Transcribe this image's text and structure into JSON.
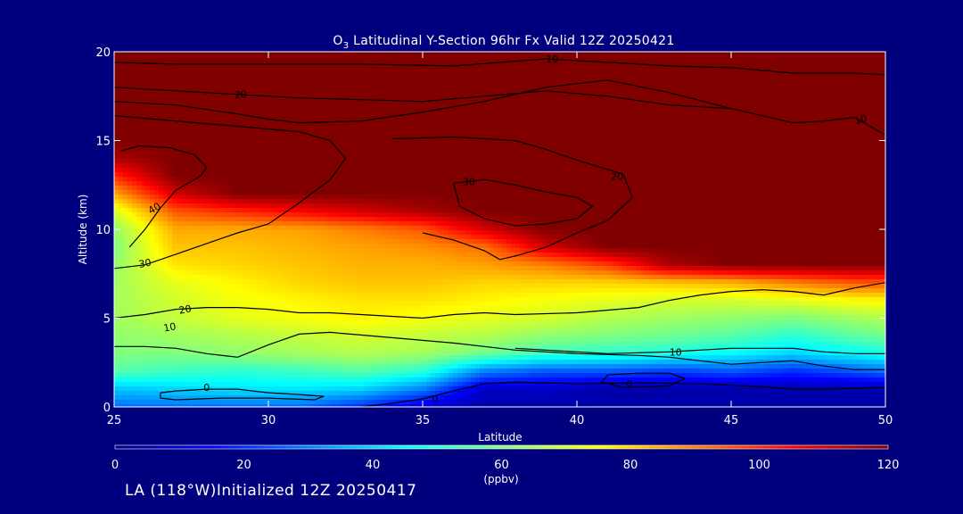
{
  "chart_data": {
    "type": "heatmap",
    "title": "O3 Latitudinal Y-Section 96hr  Fx Valid 12Z 20250421",
    "title_parts": {
      "pre": "O",
      "sub": "3",
      "post": " Latitudinal Y-Section 96hr  Fx Valid 12Z 20250421"
    },
    "xlabel": "Latitude",
    "ylabel": "Altitude (km)",
    "xlim": [
      25,
      50
    ],
    "ylim": [
      0,
      20
    ],
    "x_ticks": [
      25,
      30,
      35,
      40,
      45,
      50
    ],
    "y_ticks": [
      0,
      5,
      10,
      15,
      20
    ],
    "colorbar": {
      "label": "(ppbv)",
      "min": 0,
      "max": 120,
      "ticks": [
        0,
        20,
        40,
        60,
        80,
        100,
        120
      ]
    },
    "field": {
      "x": [
        25,
        27,
        29,
        31,
        33,
        35,
        37,
        39,
        41,
        43,
        45,
        47,
        49,
        50
      ],
      "y": [
        0,
        1,
        2,
        3,
        4,
        5,
        6,
        7,
        8,
        9,
        10,
        11,
        12,
        13,
        14,
        15,
        16,
        18,
        20
      ],
      "z": [
        [
          28,
          28,
          28,
          28,
          20,
          10,
          5,
          5,
          5,
          5,
          5,
          5,
          5,
          5
        ],
        [
          38,
          40,
          42,
          42,
          40,
          30,
          8,
          8,
          5,
          5,
          5,
          5,
          5,
          5
        ],
        [
          55,
          52,
          50,
          52,
          55,
          50,
          30,
          25,
          25,
          22,
          25,
          20,
          25,
          28
        ],
        [
          60,
          60,
          62,
          64,
          66,
          64,
          58,
          52,
          50,
          48,
          45,
          40,
          45,
          48
        ],
        [
          62,
          64,
          66,
          68,
          70,
          68,
          66,
          62,
          60,
          58,
          55,
          50,
          56,
          58
        ],
        [
          64,
          68,
          72,
          74,
          76,
          74,
          72,
          70,
          66,
          64,
          62,
          60,
          64,
          66
        ],
        [
          64,
          70,
          74,
          76,
          78,
          78,
          76,
          74,
          72,
          70,
          70,
          72,
          75,
          76
        ],
        [
          64,
          72,
          76,
          80,
          82,
          82,
          80,
          80,
          80,
          82,
          84,
          90,
          95,
          95
        ],
        [
          62,
          78,
          80,
          82,
          84,
          84,
          86,
          90,
          98,
          115,
          120,
          120,
          120,
          120
        ],
        [
          60,
          82,
          82,
          84,
          86,
          88,
          92,
          110,
          120,
          120,
          120,
          120,
          120,
          120
        ],
        [
          62,
          85,
          85,
          86,
          90,
          95,
          110,
          120,
          120,
          120,
          120,
          120,
          120,
          120
        ],
        [
          70,
          95,
          100,
          105,
          110,
          115,
          120,
          120,
          120,
          120,
          120,
          120,
          120,
          120
        ],
        [
          85,
          110,
          120,
          120,
          120,
          120,
          120,
          120,
          120,
          120,
          120,
          120,
          120,
          120
        ],
        [
          100,
          120,
          120,
          120,
          120,
          120,
          120,
          120,
          120,
          120,
          120,
          120,
          120,
          120
        ],
        [
          115,
          120,
          120,
          120,
          120,
          120,
          120,
          120,
          120,
          120,
          120,
          120,
          120,
          120
        ],
        [
          120,
          120,
          120,
          120,
          120,
          120,
          120,
          120,
          120,
          120,
          120,
          120,
          120,
          120
        ],
        [
          120,
          120,
          120,
          120,
          120,
          120,
          120,
          120,
          120,
          120,
          120,
          120,
          120,
          120
        ],
        [
          120,
          120,
          120,
          120,
          120,
          120,
          120,
          120,
          120,
          120,
          120,
          120,
          120,
          120
        ],
        [
          120,
          120,
          120,
          120,
          120,
          120,
          120,
          120,
          120,
          120,
          120,
          120,
          120,
          120
        ]
      ]
    },
    "contours": [
      {
        "label": "0",
        "label_at": [
          28,
          1.1
        ],
        "label_rotation": 0,
        "points": [
          [
            26.5,
            0.8
          ],
          [
            27,
            0.9
          ],
          [
            28,
            1.0
          ],
          [
            29,
            1.0
          ],
          [
            30,
            0.8
          ],
          [
            31,
            0.7
          ],
          [
            31.8,
            0.6
          ],
          [
            31.5,
            0.4
          ],
          [
            30,
            0.5
          ],
          [
            28.5,
            0.5
          ],
          [
            27,
            0.4
          ],
          [
            26.5,
            0.5
          ],
          [
            26.5,
            0.8
          ]
        ]
      },
      {
        "label": "0",
        "label_at": [
          35.4,
          0.45
        ],
        "label_rotation": -10,
        "points": [
          [
            33,
            0.0
          ],
          [
            34,
            0.2
          ],
          [
            35,
            0.45
          ],
          [
            36,
            0.9
          ],
          [
            37,
            1.3
          ],
          [
            38,
            1.4
          ],
          [
            40,
            1.3
          ],
          [
            42,
            1.35
          ],
          [
            44,
            1.3
          ],
          [
            46,
            1.15
          ],
          [
            47,
            1.0
          ],
          [
            48,
            1.0
          ],
          [
            49,
            1.05
          ],
          [
            50,
            1.1
          ]
        ]
      },
      {
        "label": "0",
        "label_at": [
          41.7,
          1.3
        ],
        "label_rotation": 0,
        "points": [
          [
            41,
            1.8
          ],
          [
            42,
            1.9
          ],
          [
            43,
            1.9
          ],
          [
            43.5,
            1.6
          ],
          [
            43,
            1.2
          ],
          [
            41.5,
            1.1
          ],
          [
            40.8,
            1.4
          ],
          [
            41,
            1.8
          ]
        ]
      },
      {
        "label": "10",
        "label_at": [
          26.8,
          4.5
        ],
        "label_rotation": -10,
        "points": [
          [
            25,
            3.4
          ],
          [
            26,
            3.4
          ],
          [
            27,
            3.3
          ],
          [
            28,
            3.0
          ],
          [
            29,
            2.8
          ],
          [
            30,
            3.5
          ],
          [
            31,
            4.1
          ],
          [
            32,
            4.2
          ],
          [
            34,
            3.9
          ],
          [
            36,
            3.6
          ],
          [
            37,
            3.4
          ],
          [
            38,
            3.2
          ],
          [
            40,
            3.0
          ],
          [
            42,
            2.9
          ],
          [
            43,
            2.8
          ],
          [
            44,
            2.6
          ],
          [
            45,
            2.4
          ],
          [
            47,
            2.6
          ],
          [
            48,
            2.3
          ],
          [
            49,
            2.1
          ],
          [
            50,
            2.1
          ]
        ]
      },
      {
        "label": "10",
        "label_at": [
          43.2,
          3.1
        ],
        "label_rotation": 0,
        "points": [
          [
            38,
            3.3
          ],
          [
            40,
            3.1
          ],
          [
            41,
            3.0
          ],
          [
            43,
            3.1
          ],
          [
            44,
            3.2
          ],
          [
            45,
            3.3
          ],
          [
            46,
            3.3
          ],
          [
            47,
            3.3
          ],
          [
            48,
            3.1
          ],
          [
            49,
            3.0
          ],
          [
            50,
            3.0
          ]
        ]
      },
      {
        "label": "10",
        "label_at": [
          39.2,
          19.6
        ],
        "label_rotation": 0,
        "points": [
          [
            25,
            19.4
          ],
          [
            27,
            19.3
          ],
          [
            30,
            19.3
          ],
          [
            33,
            19.3
          ],
          [
            36,
            19.2
          ],
          [
            39,
            19.6
          ],
          [
            41,
            19.4
          ],
          [
            43,
            19.2
          ],
          [
            45,
            19.1
          ],
          [
            47,
            18.8
          ],
          [
            49,
            18.8
          ],
          [
            50,
            18.7
          ]
        ]
      },
      {
        "label": "10",
        "label_at": [
          49.2,
          16.2
        ],
        "label_rotation": -15,
        "points": [
          [
            25,
            17.2
          ],
          [
            27,
            17.0
          ],
          [
            29,
            16.5
          ],
          [
            30,
            16.2
          ],
          [
            31,
            16.0
          ],
          [
            33,
            16.1
          ],
          [
            35,
            16.6
          ],
          [
            37,
            17.2
          ],
          [
            39,
            18.0
          ],
          [
            41,
            18.4
          ],
          [
            43,
            17.7
          ],
          [
            45,
            16.8
          ],
          [
            47,
            16.0
          ],
          [
            48,
            16.1
          ],
          [
            49,
            16.3
          ],
          [
            50,
            15.3
          ]
        ]
      },
      {
        "label": "20",
        "label_at": [
          27.3,
          5.5
        ],
        "label_rotation": -10,
        "points": [
          [
            25,
            5.0
          ],
          [
            26,
            5.2
          ],
          [
            27,
            5.5
          ],
          [
            28,
            5.6
          ],
          [
            29,
            5.6
          ],
          [
            30,
            5.5
          ],
          [
            31,
            5.3
          ],
          [
            32,
            5.3
          ],
          [
            34,
            5.1
          ],
          [
            35,
            5.0
          ],
          [
            36,
            5.2
          ],
          [
            37,
            5.3
          ],
          [
            38,
            5.2
          ],
          [
            40,
            5.3
          ],
          [
            42,
            5.6
          ],
          [
            43,
            6.0
          ],
          [
            44,
            6.3
          ],
          [
            45,
            6.5
          ],
          [
            46,
            6.6
          ],
          [
            47,
            6.5
          ],
          [
            48,
            6.3
          ],
          [
            49,
            6.7
          ],
          [
            50,
            7.0
          ]
        ]
      },
      {
        "label": "20",
        "label_at": [
          29.1,
          17.6
        ],
        "label_rotation": -5,
        "points": [
          [
            25,
            18.0
          ],
          [
            27,
            17.8
          ],
          [
            29,
            17.6
          ],
          [
            31,
            17.4
          ],
          [
            33,
            17.3
          ],
          [
            35,
            17.2
          ],
          [
            37,
            17.5
          ],
          [
            39,
            17.8
          ],
          [
            41,
            17.5
          ],
          [
            43,
            17.0
          ],
          [
            45,
            16.8
          ]
        ]
      },
      {
        "label": "20",
        "label_at": [
          41.3,
          13.0
        ],
        "label_rotation": 0,
        "points": [
          [
            35,
            9.8
          ],
          [
            36,
            9.4
          ],
          [
            37,
            8.8
          ],
          [
            37.5,
            8.3
          ],
          [
            38,
            8.5
          ],
          [
            39,
            9.0
          ],
          [
            40,
            9.8
          ],
          [
            41,
            10.5
          ],
          [
            41.8,
            11.8
          ],
          [
            41.5,
            13.1
          ],
          [
            40,
            13.9
          ],
          [
            39,
            14.5
          ],
          [
            38,
            15.0
          ],
          [
            36,
            15.2
          ],
          [
            34,
            15.1
          ]
        ]
      },
      {
        "label": "30",
        "label_at": [
          26.0,
          8.1
        ],
        "label_rotation": -10,
        "points": [
          [
            25,
            7.8
          ],
          [
            26,
            8.0
          ],
          [
            27,
            8.6
          ],
          [
            28,
            9.2
          ],
          [
            29,
            9.8
          ],
          [
            30,
            10.3
          ],
          [
            31,
            11.5
          ],
          [
            32,
            12.8
          ],
          [
            32.5,
            14.0
          ],
          [
            32,
            15.0
          ],
          [
            31,
            15.5
          ],
          [
            29,
            15.8
          ],
          [
            27,
            16.1
          ],
          [
            25,
            16.4
          ]
        ]
      },
      {
        "label": "30",
        "label_at": [
          36.5,
          12.7
        ],
        "label_rotation": 0,
        "points": [
          [
            36,
            12.6
          ],
          [
            37,
            12.8
          ],
          [
            38,
            12.5
          ],
          [
            39,
            12.1
          ],
          [
            40,
            11.8
          ],
          [
            40.5,
            11.3
          ],
          [
            40,
            10.6
          ],
          [
            39,
            10.3
          ],
          [
            38,
            10.2
          ],
          [
            37,
            10.6
          ],
          [
            36.2,
            11.3
          ],
          [
            36,
            12.6
          ]
        ]
      },
      {
        "label": "40",
        "label_at": [
          26.3,
          11.2
        ],
        "label_rotation": -30,
        "points": [
          [
            25.5,
            9.0
          ],
          [
            26,
            10.0
          ],
          [
            26.5,
            11.2
          ],
          [
            27,
            12.2
          ],
          [
            27.8,
            13.0
          ],
          [
            28,
            13.5
          ],
          [
            27.6,
            14.2
          ],
          [
            26.8,
            14.6
          ],
          [
            25.8,
            14.7
          ],
          [
            25.2,
            14.4
          ]
        ]
      }
    ]
  },
  "footer": {
    "text": "LA (118°W)Initialized 12Z 20250417"
  }
}
